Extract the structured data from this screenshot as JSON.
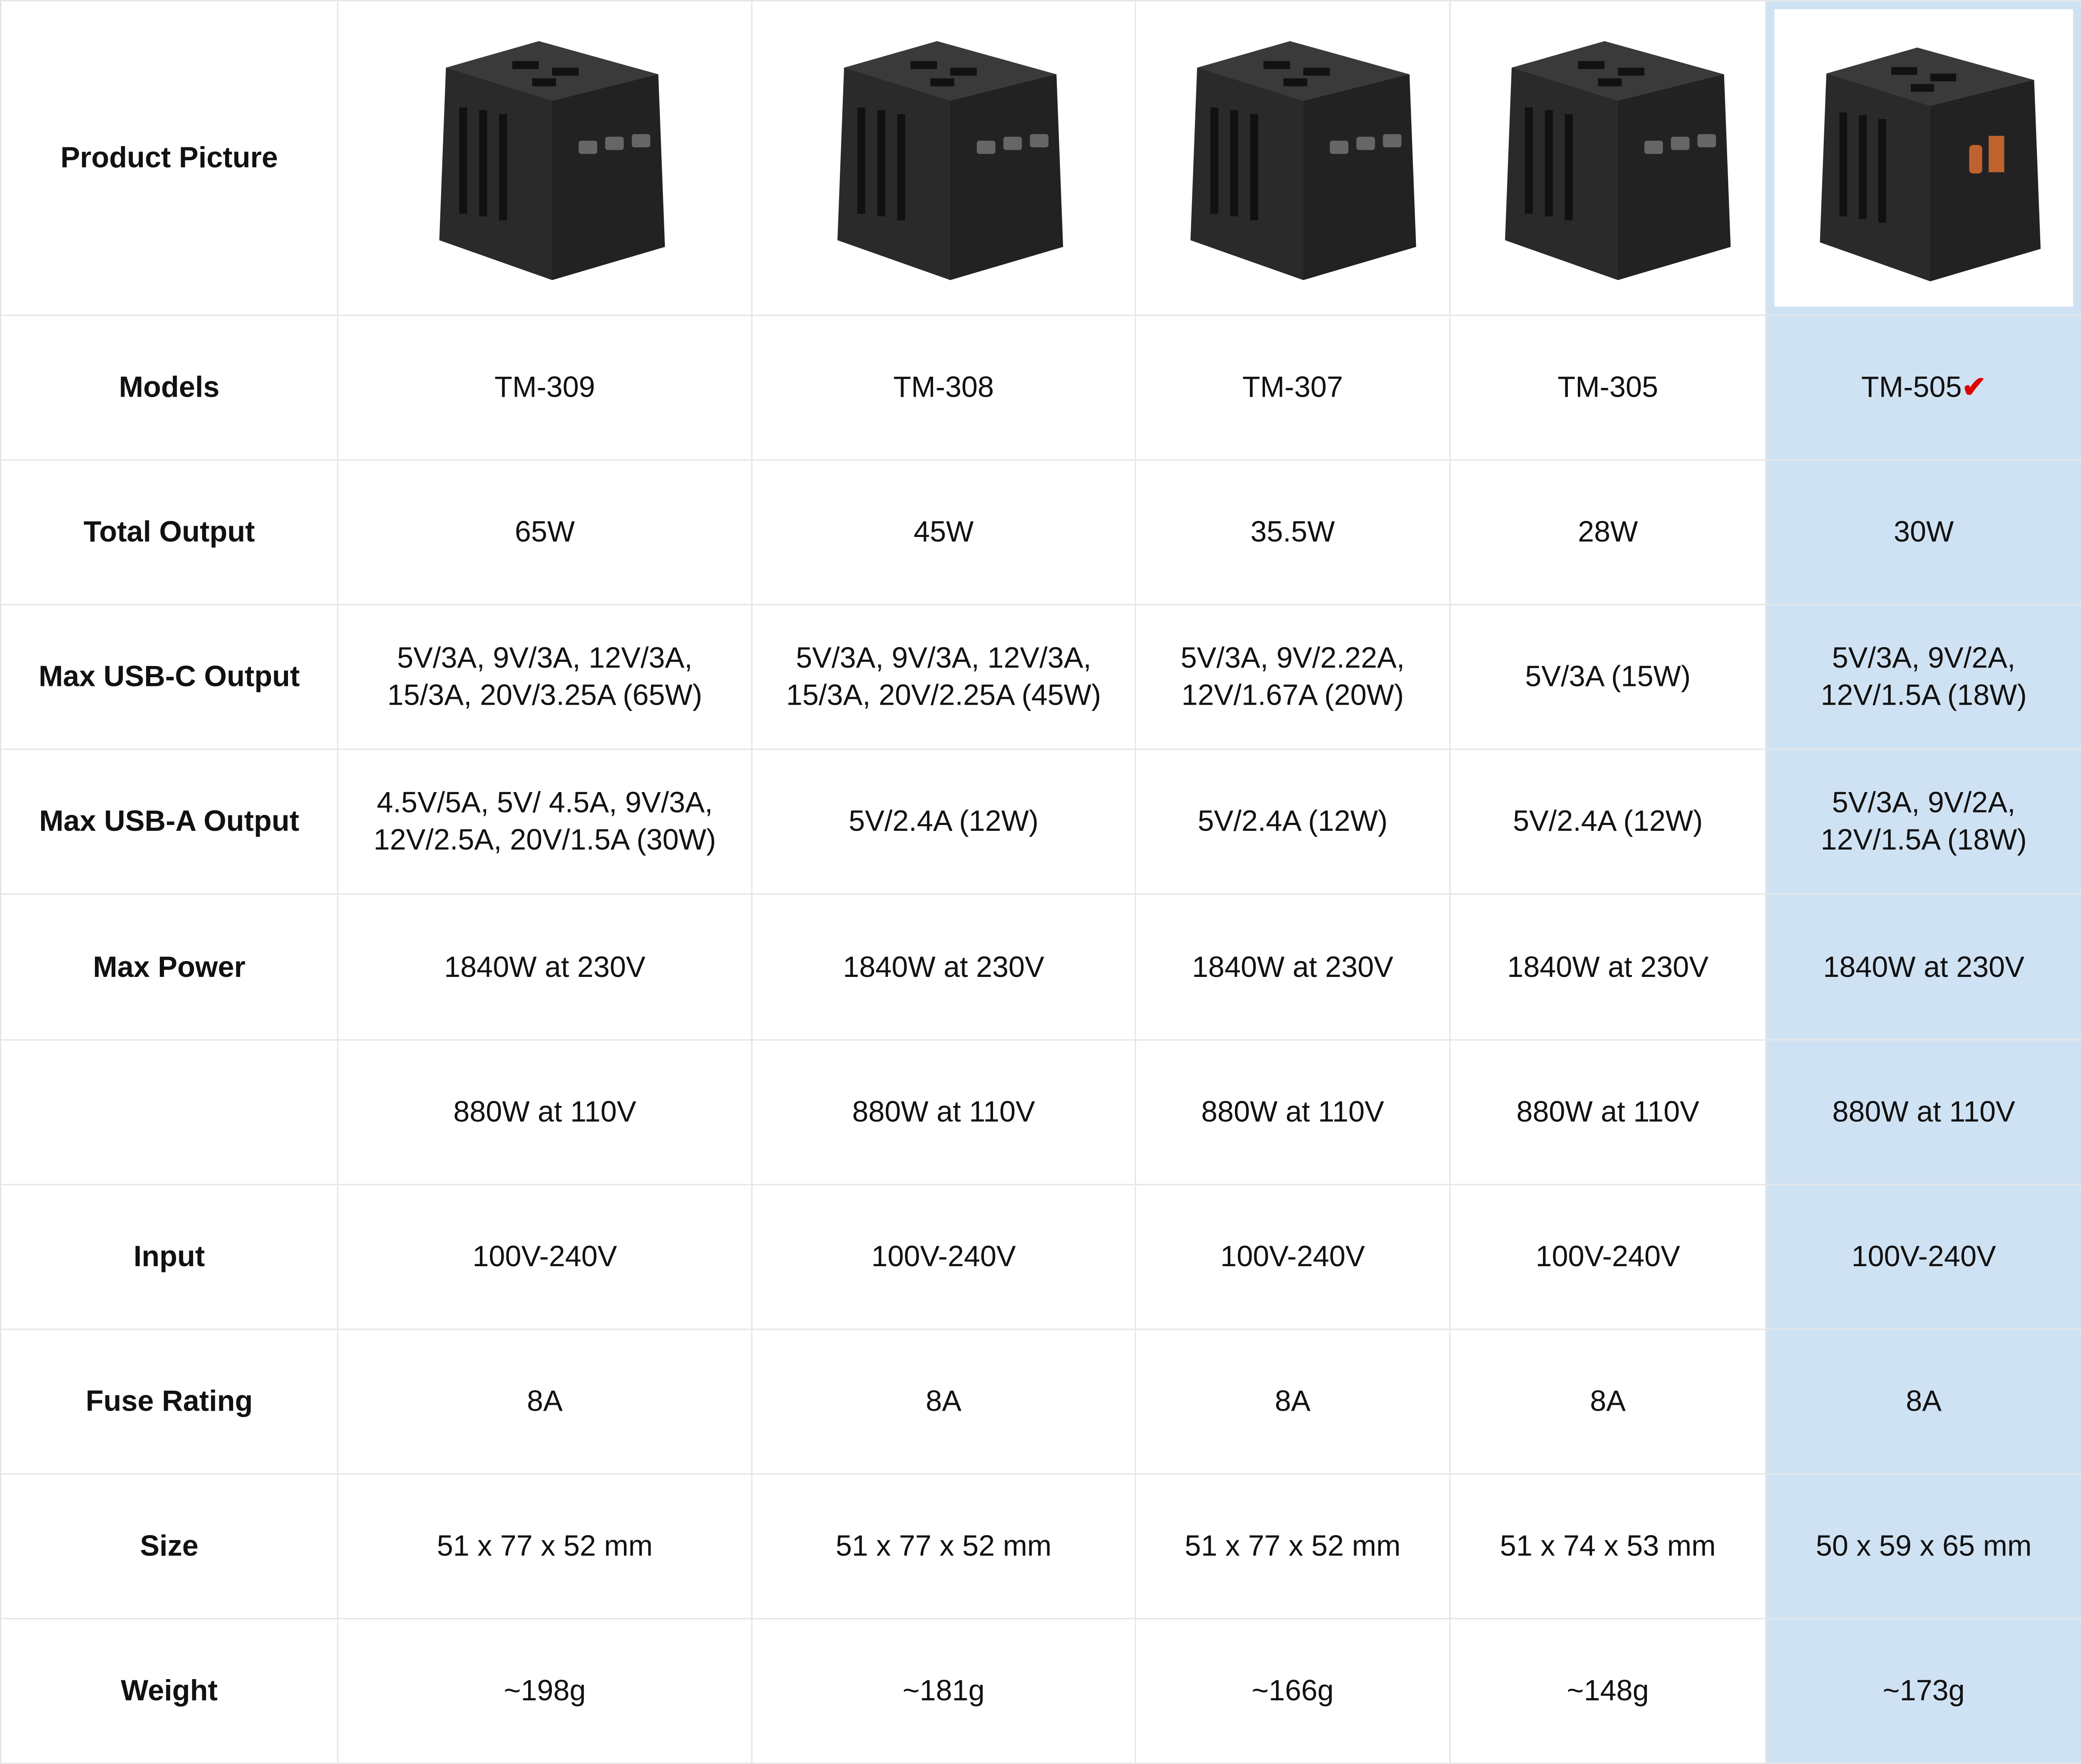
{
  "row_labels": [
    "Product Picture",
    "Models",
    "Total Output",
    "Max USB-C Output",
    "Max USB-A Output",
    "Max Power",
    "",
    "Input",
    "Fuse Rating",
    "Size",
    "Weight"
  ],
  "highlight_color": "#cfe2f3",
  "check_mark": "✔",
  "check_color": "#e00000",
  "products": [
    {
      "image": "travel-adapter-tm-309",
      "model": "TM-309",
      "total_output": "65W",
      "usb_c_1": "5V/3A, 9V/3A, 12V/3A,",
      "usb_c_2": "15/3A, 20V/3.25A (65W)",
      "usb_a_1": "4.5V/5A, 5V/ 4.5A, 9V/3A,",
      "usb_a_2": "12V/2.5A, 20V/1.5A (30W)",
      "power_230": "1840W at 230V",
      "power_110": "880W at 110V",
      "input": "100V-240V",
      "fuse": "8A",
      "size": "51 x 77 x 52 mm",
      "weight": "~198g"
    },
    {
      "image": "travel-adapter-tm-308",
      "model": "TM-308",
      "total_output": "45W",
      "usb_c_1": "5V/3A, 9V/3A, 12V/3A,",
      "usb_c_2": "15/3A, 20V/2.25A (45W)",
      "usb_a_1": "5V/2.4A (12W)",
      "usb_a_2": "",
      "power_230": "1840W at 230V",
      "power_110": "880W at 110V",
      "input": "100V-240V",
      "fuse": "8A",
      "size": "51 x 77 x 52 mm",
      "weight": "~181g"
    },
    {
      "image": "travel-adapter-tm-307",
      "model": "TM-307",
      "total_output": "35.5W",
      "usb_c_1": "5V/3A, 9V/2.22A,",
      "usb_c_2": "12V/1.67A (20W)",
      "usb_a_1": "5V/2.4A (12W)",
      "usb_a_2": "",
      "power_230": "1840W at 230V",
      "power_110": "880W at 110V",
      "input": "100V-240V",
      "fuse": "8A",
      "size": "51 x 77 x 52 mm",
      "weight": "~166g"
    },
    {
      "image": "travel-adapter-tm-305",
      "model": "TM-305",
      "total_output": "28W",
      "usb_c_1": "5V/3A (15W)",
      "usb_c_2": "",
      "usb_a_1": "5V/2.4A (12W)",
      "usb_a_2": "",
      "power_230": "1840W at 230V",
      "power_110": "880W at 110V",
      "input": "100V-240V",
      "fuse": "8A",
      "size": "51 x 74 x 53 mm",
      "weight": "~148g"
    },
    {
      "image": "travel-adapter-tm-505",
      "model": "TM-505",
      "total_output": "30W",
      "usb_c_1": "5V/3A, 9V/2A,",
      "usb_c_2": "12V/1.5A (18W)",
      "usb_a_1": "5V/3A, 9V/2A,",
      "usb_a_2": "12V/1.5A (18W)",
      "power_230": "1840W at 230V",
      "power_110": "880W at 110V",
      "input": "100V-240V",
      "fuse": "8A",
      "size": "50 x 59 x 65 mm",
      "weight": "~173g",
      "highlighted": true
    }
  ]
}
